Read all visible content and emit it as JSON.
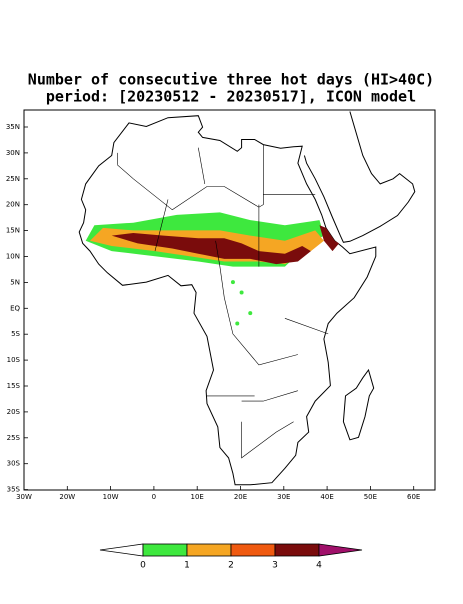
{
  "title": {
    "line1": "Number of consecutive three hot days (HI>40C)",
    "line2": "period: [20230512 - 20230517], ICON model"
  },
  "map": {
    "lat_labels": [
      "35N",
      "30N",
      "25N",
      "20N",
      "15N",
      "10N",
      "5N",
      "EQ",
      "5S",
      "10S",
      "15S",
      "20S",
      "25S",
      "30S",
      "35S"
    ],
    "lon_labels": [
      "30W",
      "20W",
      "10W",
      "0",
      "10E",
      "20E",
      "30E",
      "40E",
      "50E",
      "60E"
    ]
  },
  "colorbar": {
    "labels": [
      0,
      1,
      2,
      3,
      4
    ],
    "colors": [
      "#ffffff",
      "#3ee83e",
      "#f5a623",
      "#f05a10",
      "#7a0c0c",
      "#a0106a"
    ]
  }
}
